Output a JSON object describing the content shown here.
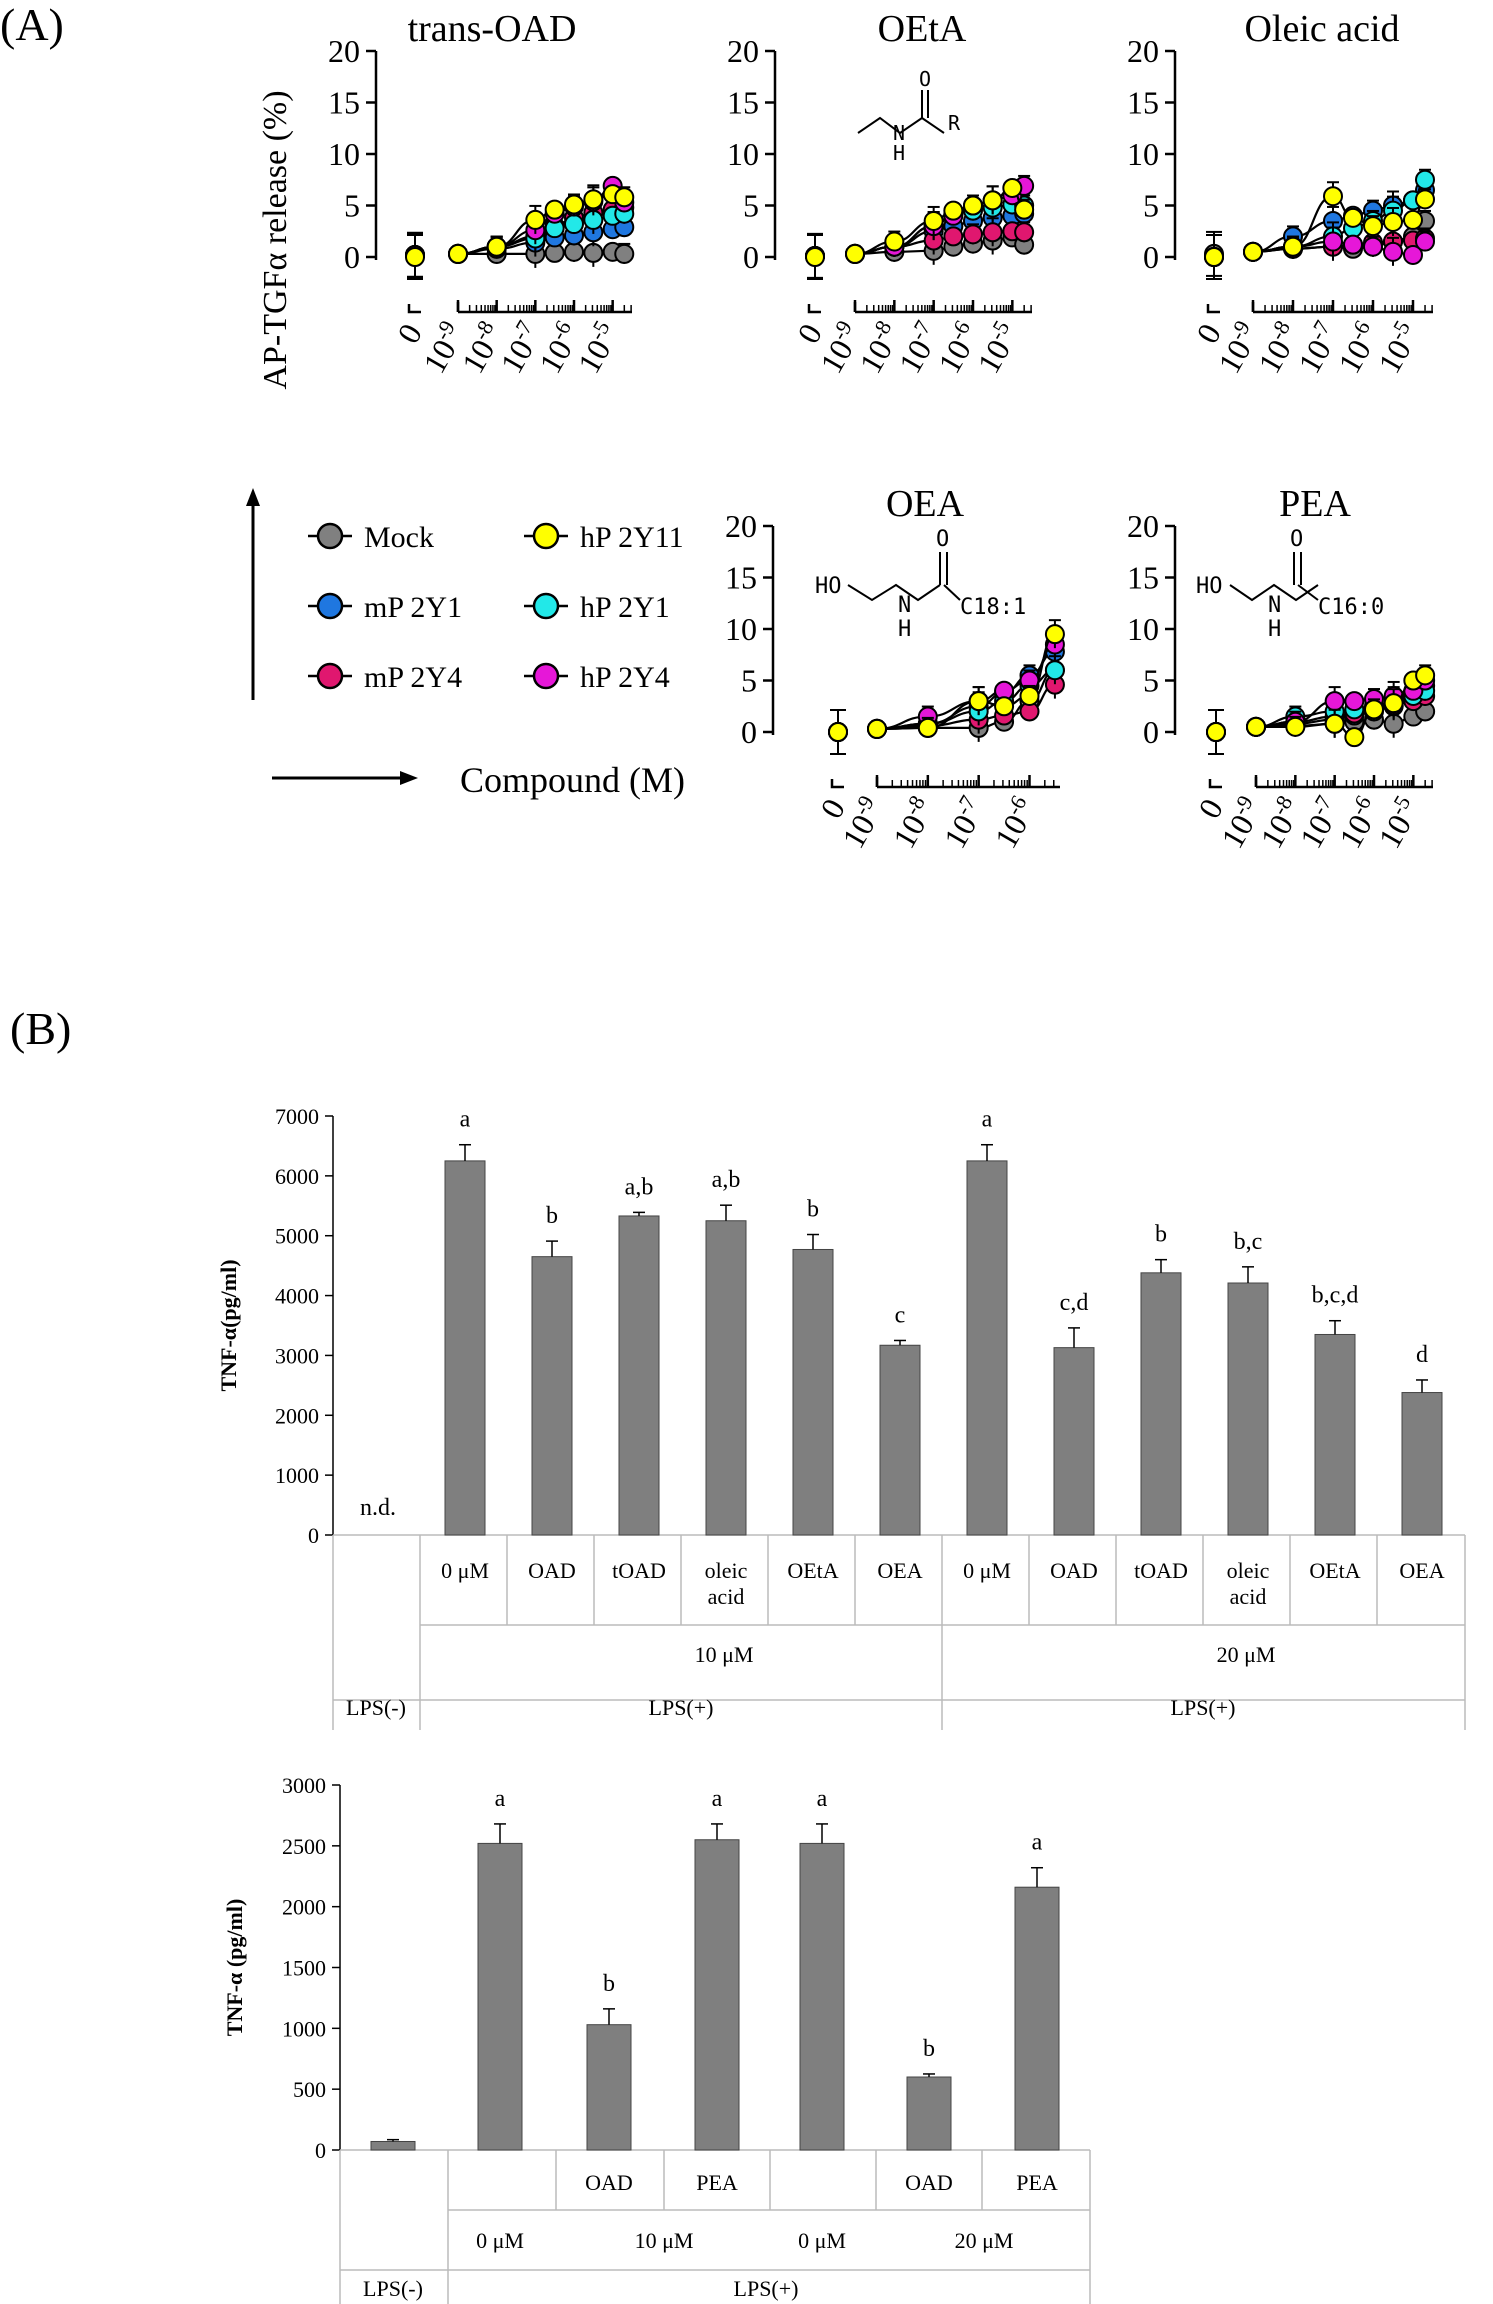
{
  "panel_labels": {
    "a": "(A)",
    "b": "(B)"
  },
  "panel_a": {
    "ylabel": "AP-TGFα release (%)",
    "xlabel": "Compound (M)",
    "x_zero_label": "0",
    "x_ticks": [
      {
        "base": "10",
        "exp": "-9",
        "v": -9
      },
      {
        "base": "10",
        "exp": "-8",
        "v": -8
      },
      {
        "base": "10",
        "exp": "-7",
        "v": -7
      },
      {
        "base": "10",
        "exp": "-6",
        "v": -6
      },
      {
        "base": "10",
        "exp": "-5",
        "v": -5
      }
    ],
    "y_ticks": [
      "0",
      "5",
      "10",
      "15",
      "20"
    ],
    "legend": [
      {
        "label": "Mock",
        "color": "#808080"
      },
      {
        "label": "mP 2Y1",
        "color": "#1f77e0"
      },
      {
        "label": "mP 2Y4",
        "color": "#e0176f"
      },
      {
        "label": "hP 2Y11",
        "color": "#ffff00"
      },
      {
        "label": "hP 2Y1",
        "color": "#22e8e8"
      },
      {
        "label": "hP 2Y4",
        "color": "#e617d8"
      }
    ],
    "structures": {
      "oeta": {
        "o": "O",
        "n": "N",
        "h": "H",
        "r": "R"
      },
      "oea": {
        "ho": "HO",
        "o": "O",
        "n": "N",
        "h": "H",
        "chain": "C18:1"
      },
      "pea": {
        "ho": "HO",
        "o": "O",
        "n": "N",
        "h": "H",
        "chain": "C16:0"
      }
    }
  },
  "chart_data": [
    {
      "type": "scatter",
      "title": "trans-OAD",
      "xlabel": "Compound (M)",
      "ylabel": "AP-TGFα release (%)",
      "x": [
        -9,
        -8,
        -7,
        -6.5,
        -6,
        -5.5,
        -5,
        -4.7
      ],
      "ylim": [
        0,
        20
      ],
      "series": [
        {
          "name": "Mock",
          "zero": 0.2,
          "values": [
            0.3,
            0.3,
            0.3,
            0.4,
            0.5,
            0.4,
            0.5,
            0.3
          ]
        },
        {
          "name": "mP 2Y1",
          "zero": 0.2,
          "values": [
            0.3,
            0.8,
            1.4,
            1.9,
            2.1,
            2.4,
            2.7,
            2.9
          ]
        },
        {
          "name": "mP 2Y4",
          "zero": 0.2,
          "values": [
            0.3,
            1.0,
            2.0,
            3.0,
            3.8,
            4.3,
            4.6,
            4.8
          ]
        },
        {
          "name": "hP 2Y11",
          "zero": 0.0,
          "values": [
            0.3,
            1.0,
            3.6,
            4.6,
            5.1,
            5.6,
            6.1,
            5.8
          ]
        },
        {
          "name": "hP 2Y1",
          "zero": 0.2,
          "values": [
            0.3,
            1.0,
            1.8,
            2.8,
            3.2,
            3.6,
            4.0,
            4.2
          ]
        },
        {
          "name": "hP 2Y4",
          "zero": 0.2,
          "values": [
            0.3,
            1.0,
            2.6,
            4.2,
            4.9,
            5.4,
            6.9,
            5.3
          ]
        }
      ]
    },
    {
      "type": "scatter",
      "title": "OEtA",
      "xlabel": "Compound (M)",
      "ylabel": "AP-TGFα release (%)",
      "x": [
        -9,
        -8,
        -7,
        -6.5,
        -6,
        -5.5,
        -5,
        -4.7
      ],
      "ylim": [
        0,
        20
      ],
      "series": [
        {
          "name": "Mock",
          "zero": 0.1,
          "values": [
            0.3,
            0.5,
            0.6,
            1.0,
            1.3,
            1.6,
            1.9,
            1.2
          ]
        },
        {
          "name": "mP 2Y1",
          "zero": 0.1,
          "values": [
            0.3,
            1.0,
            2.5,
            3.0,
            3.5,
            3.8,
            4.0,
            4.2
          ]
        },
        {
          "name": "mP 2Y4",
          "zero": 0.1,
          "values": [
            0.3,
            1.0,
            1.6,
            2.0,
            2.2,
            2.4,
            2.5,
            2.4
          ]
        },
        {
          "name": "hP 2Y11",
          "zero": 0.0,
          "values": [
            0.3,
            1.5,
            3.5,
            4.5,
            5.0,
            5.5,
            6.7,
            4.6
          ]
        },
        {
          "name": "hP 2Y1",
          "zero": 0.1,
          "values": [
            0.3,
            1.0,
            3.0,
            4.2,
            4.5,
            4.8,
            5.1,
            5.0
          ]
        },
        {
          "name": "hP 2Y4",
          "zero": 0.1,
          "values": [
            0.3,
            1.0,
            3.0,
            4.0,
            5.0,
            5.5,
            6.0,
            6.9
          ]
        }
      ]
    },
    {
      "type": "scatter",
      "title": "Oleic acid",
      "xlabel": "Compound (M)",
      "ylabel": "AP-TGFα release (%)",
      "x": [
        -9,
        -8,
        -7,
        -6.5,
        -6,
        -5.5,
        -5,
        -4.7
      ],
      "ylim": [
        0,
        20
      ],
      "series": [
        {
          "name": "Mock",
          "zero": 0.3,
          "values": [
            0.5,
            0.8,
            1.0,
            0.8,
            1.0,
            1.5,
            2.0,
            3.5
          ]
        },
        {
          "name": "mP 2Y1",
          "zero": 0.0,
          "values": [
            0.5,
            2.0,
            3.5,
            4.0,
            4.5,
            5.0,
            5.5,
            6.5
          ]
        },
        {
          "name": "mP 2Y4",
          "zero": 0.0,
          "values": [
            0.5,
            0.8,
            1.0,
            1.2,
            1.4,
            1.5,
            1.6,
            1.8
          ]
        },
        {
          "name": "hP 2Y11",
          "zero": 0.0,
          "values": [
            0.5,
            1.0,
            5.9,
            3.8,
            3.0,
            3.4,
            3.6,
            5.6
          ]
        },
        {
          "name": "hP 2Y1",
          "zero": 0.0,
          "values": [
            0.5,
            1.0,
            2.0,
            2.8,
            3.5,
            4.5,
            5.5,
            7.5
          ]
        },
        {
          "name": "hP 2Y4",
          "zero": 0.0,
          "values": [
            0.5,
            1.0,
            1.5,
            1.2,
            1.0,
            0.5,
            0.2,
            1.5
          ]
        }
      ]
    },
    {
      "type": "scatter",
      "title": "OEA",
      "xlabel": "Compound (M)",
      "ylabel": "AP-TGFα release (%)",
      "x": [
        -9,
        -8,
        -7,
        -6.5,
        -6,
        -5.5
      ],
      "ylim": [
        0,
        20
      ],
      "series": [
        {
          "name": "Mock",
          "zero": 0.0,
          "values": [
            0.3,
            0.4,
            0.4,
            1.0,
            3.0,
            6.0
          ]
        },
        {
          "name": "mP 2Y1",
          "zero": 0.0,
          "values": [
            0.3,
            0.8,
            2.5,
            3.8,
            5.5,
            7.8
          ]
        },
        {
          "name": "mP 2Y4",
          "zero": 0.0,
          "values": [
            0.3,
            0.6,
            1.2,
            1.6,
            2.0,
            4.6
          ]
        },
        {
          "name": "hP 2Y11",
          "zero": 0.0,
          "values": [
            0.3,
            0.4,
            3.0,
            2.5,
            3.5,
            9.5
          ]
        },
        {
          "name": "hP 2Y1",
          "zero": 0.0,
          "values": [
            0.3,
            0.8,
            2.0,
            3.0,
            4.5,
            6.0
          ]
        },
        {
          "name": "hP 2Y4",
          "zero": 0.0,
          "values": [
            0.3,
            1.5,
            3.0,
            4.0,
            5.0,
            8.5
          ]
        }
      ]
    },
    {
      "type": "scatter",
      "title": "PEA",
      "xlabel": "Compound (M)",
      "ylabel": "AP-TGFα release (%)",
      "x": [
        -9,
        -8,
        -7,
        -6.5,
        -6,
        -5.5,
        -5,
        -4.7
      ],
      "ylim": [
        0,
        20
      ],
      "series": [
        {
          "name": "Mock",
          "zero": 0.0,
          "values": [
            0.5,
            0.6,
            0.8,
            1.0,
            1.2,
            0.8,
            1.5,
            2.0
          ]
        },
        {
          "name": "mP 2Y1",
          "zero": 0.0,
          "values": [
            0.5,
            0.8,
            1.2,
            1.6,
            2.0,
            2.5,
            3.5,
            4.5
          ]
        },
        {
          "name": "mP 2Y4",
          "zero": 0.0,
          "values": [
            0.5,
            1.0,
            1.5,
            1.8,
            2.2,
            2.6,
            3.0,
            3.5
          ]
        },
        {
          "name": "hP 2Y11",
          "zero": 0.0,
          "values": [
            0.5,
            0.5,
            0.8,
            -0.5,
            2.2,
            2.8,
            5.0,
            5.5
          ]
        },
        {
          "name": "hP 2Y1",
          "zero": 0.0,
          "values": [
            0.5,
            1.5,
            2.0,
            2.2,
            2.5,
            3.0,
            3.5,
            4.0
          ]
        },
        {
          "name": "hP 2Y4",
          "zero": 0.0,
          "values": [
            0.5,
            1.0,
            3.0,
            3.0,
            3.2,
            3.5,
            4.0,
            5.0
          ]
        }
      ]
    },
    {
      "type": "bar",
      "title": "",
      "ylabel": "TNF-α(pg/ml)",
      "ylim": [
        0,
        7000
      ],
      "y_ticks": [
        "0",
        "1000",
        "2000",
        "3000",
        "4000",
        "5000",
        "6000",
        "7000"
      ],
      "categories": [
        "",
        "0 μM",
        "OAD",
        "tOAD",
        "oleic acid",
        "OEtA",
        "OEA",
        "0 μM",
        "OAD",
        "tOAD",
        "oleic acid",
        "OEtA",
        "OEA"
      ],
      "values": [
        0,
        6250,
        4650,
        5330,
        5250,
        4770,
        3170,
        6250,
        3130,
        4380,
        4210,
        3350,
        2380
      ],
      "errors": [
        0,
        270,
        260,
        60,
        260,
        250,
        80,
        270,
        330,
        220,
        270,
        230,
        210
      ],
      "letters": [
        "n.d.",
        "a",
        "b",
        "a,b",
        "a,b",
        "b",
        "c",
        "a",
        "c,d",
        "b",
        "b,c",
        "b,c,d",
        "d"
      ],
      "conc_labels": [
        "10 μM",
        "20 μM"
      ],
      "lps_labels": [
        "LPS(-)",
        "LPS(+)",
        "LPS(+)"
      ]
    },
    {
      "type": "bar",
      "title": "",
      "ylabel": "TNF-α (pg/ml)",
      "ylim": [
        0,
        3000
      ],
      "y_ticks": [
        "0",
        "500",
        "1000",
        "1500",
        "2000",
        "2500",
        "3000"
      ],
      "categories": [
        "",
        "",
        "OAD",
        "PEA",
        "",
        "OAD",
        "PEA"
      ],
      "values": [
        70,
        2520,
        1030,
        2550,
        2520,
        600,
        2160
      ],
      "errors": [
        15,
        160,
        130,
        130,
        160,
        25,
        160
      ],
      "letters": [
        "",
        "a",
        "b",
        "a",
        "a",
        "b",
        "a"
      ],
      "conc_labels": [
        "0 μM",
        "10 μM",
        "0 μM",
        "20 μM"
      ],
      "lps_labels": [
        "LPS(-)",
        "LPS(+)"
      ]
    }
  ]
}
